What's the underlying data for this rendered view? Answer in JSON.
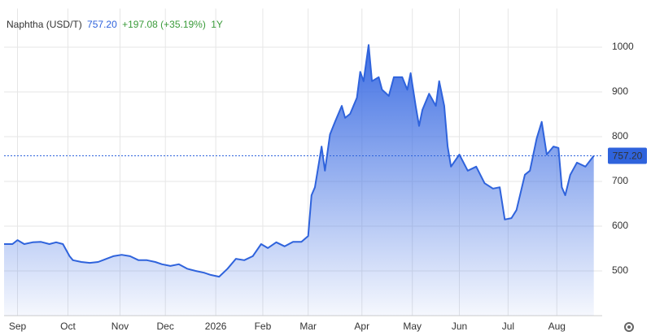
{
  "chart_data": {
    "type": "area",
    "title": "Naphtha (USD/T)",
    "price": "757.20",
    "change": "+197.08 (+35.19%)",
    "range": "1Y",
    "color": "#2f63dc",
    "x": [
      0,
      5,
      8,
      12,
      17,
      22,
      27,
      31,
      35,
      39,
      41,
      46,
      51,
      56,
      61,
      65,
      70,
      75,
      80,
      85,
      90,
      94,
      99,
      104,
      109,
      114,
      119,
      123,
      128,
      133,
      138,
      143,
      148,
      153,
      157,
      162,
      167,
      172,
      177,
      181,
      183,
      185,
      189,
      191,
      194,
      197,
      201,
      203,
      206,
      210,
      212,
      214,
      217,
      219,
      223,
      225,
      229,
      232,
      237,
      240,
      242,
      245,
      247,
      249,
      253,
      257,
      259,
      262,
      264,
      266,
      271,
      276,
      281,
      286,
      291,
      295,
      298,
      302,
      305,
      310,
      313,
      317,
      320,
      323,
      327,
      330,
      332,
      334,
      337,
      341,
      346,
      351
    ],
    "values": [
      560,
      560,
      569,
      560,
      564,
      565,
      560,
      564,
      560,
      533,
      524,
      520,
      518,
      520,
      527,
      533,
      536,
      533,
      524,
      524,
      520,
      515,
      511,
      515,
      505,
      500,
      496,
      491,
      487,
      505,
      527,
      524,
      533,
      560,
      551,
      564,
      555,
      565,
      565,
      578,
      669,
      687,
      778,
      724,
      805,
      833,
      869,
      842,
      851,
      887,
      945,
      924,
      1005,
      924,
      933,
      905,
      891,
      933,
      933,
      905,
      942,
      869,
      824,
      860,
      896,
      869,
      924,
      869,
      778,
      733,
      760,
      724,
      733,
      696,
      684,
      687,
      615,
      618,
      636,
      715,
      724,
      796,
      833,
      760,
      778,
      775,
      687,
      669,
      715,
      742,
      733,
      757.2
    ],
    "xlim": [
      0,
      356
    ],
    "xticks": [
      {
        "value": 8,
        "label": "Sep"
      },
      {
        "value": 38,
        "label": "Oct"
      },
      {
        "value": 69,
        "label": "Nov"
      },
      {
        "value": 96,
        "label": "Dec"
      },
      {
        "value": 126,
        "label": "2026"
      },
      {
        "value": 154,
        "label": "Feb"
      },
      {
        "value": 181,
        "label": "Mar"
      },
      {
        "value": 213,
        "label": "Apr"
      },
      {
        "value": 243,
        "label": "May"
      },
      {
        "value": 271,
        "label": "Jun"
      },
      {
        "value": 300,
        "label": "Jul"
      },
      {
        "value": 329,
        "label": "Aug"
      }
    ],
    "ylim": [
      400,
      1050
    ],
    "yticks": [
      500,
      600,
      700,
      800,
      900,
      1000
    ],
    "grid": true
  }
}
